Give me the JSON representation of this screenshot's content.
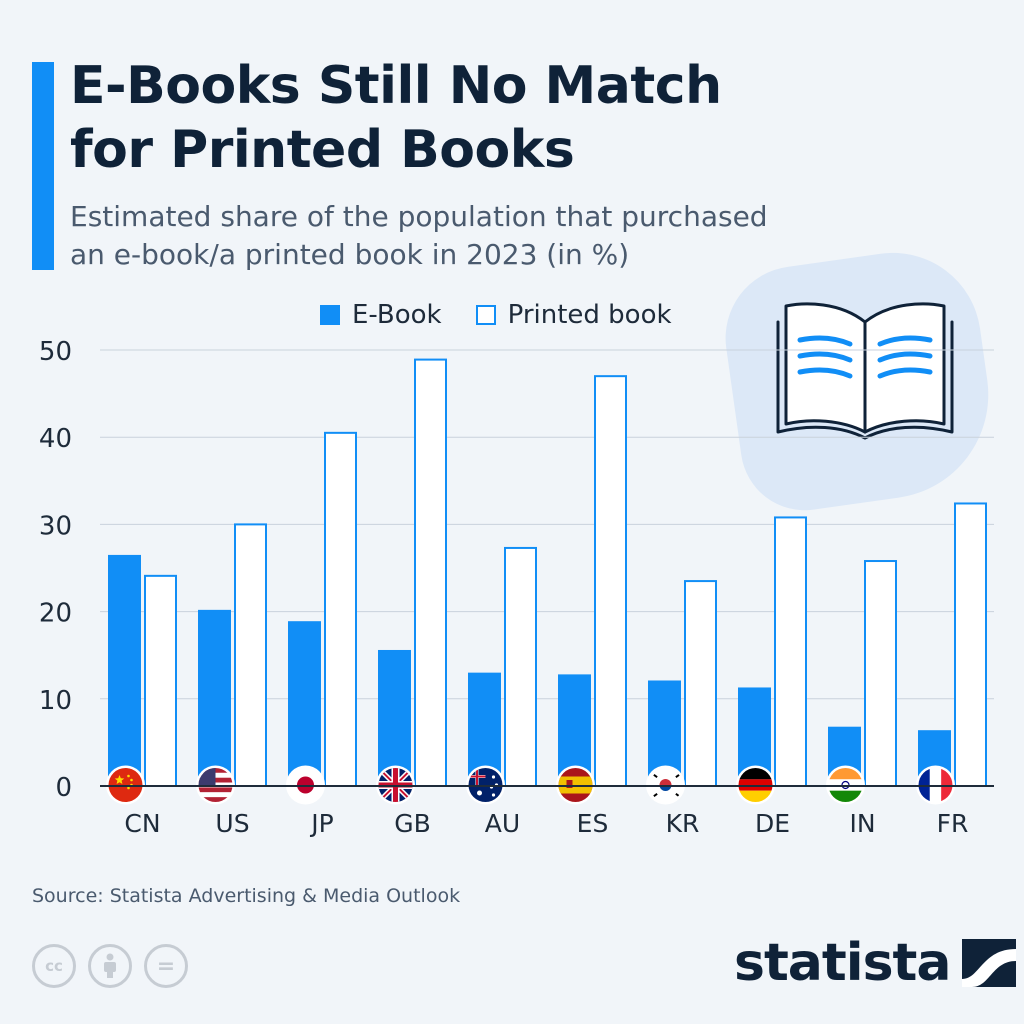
{
  "header": {
    "title_line1": "E-Books Still No Match",
    "title_line2": "for Printed Books",
    "subtitle_line1": "Estimated share of the population that purchased",
    "subtitle_line2": "an e-book/a printed book in 2023 (in %)"
  },
  "legend": {
    "ebook_label": "E-Book",
    "printed_label": "Printed book"
  },
  "colors": {
    "accent": "#118ef6",
    "title": "#0f2238",
    "background": "#f1f5f9"
  },
  "icons": {
    "book": "open-book-icon",
    "cc": "creative-commons-icon",
    "by": "attribution-icon",
    "nd": "no-derivatives-icon"
  },
  "chart_data": {
    "type": "bar",
    "categories": [
      "CN",
      "US",
      "JP",
      "GB",
      "AU",
      "ES",
      "KR",
      "DE",
      "IN",
      "FR"
    ],
    "series": [
      {
        "name": "E-Book",
        "values": [
          26.5,
          20.2,
          18.9,
          15.6,
          13.0,
          12.8,
          12.1,
          11.3,
          6.8,
          6.4
        ]
      },
      {
        "name": "Printed book",
        "values": [
          24.1,
          30.0,
          40.5,
          48.9,
          27.3,
          47.0,
          23.5,
          30.8,
          25.8,
          32.4
        ]
      }
    ],
    "y_ticks": [
      0,
      10,
      20,
      30,
      40,
      50
    ],
    "ylim": [
      0,
      50
    ],
    "legend_position": "top",
    "grid": true,
    "flags": [
      "China",
      "United States",
      "Japan",
      "United Kingdom",
      "Australia",
      "Spain",
      "South Korea",
      "Germany",
      "India",
      "France"
    ]
  },
  "footer": {
    "source": "Source: Statista Advertising & Media Outlook",
    "brand": "statista",
    "cc_label": "cc",
    "nd_label": "="
  }
}
